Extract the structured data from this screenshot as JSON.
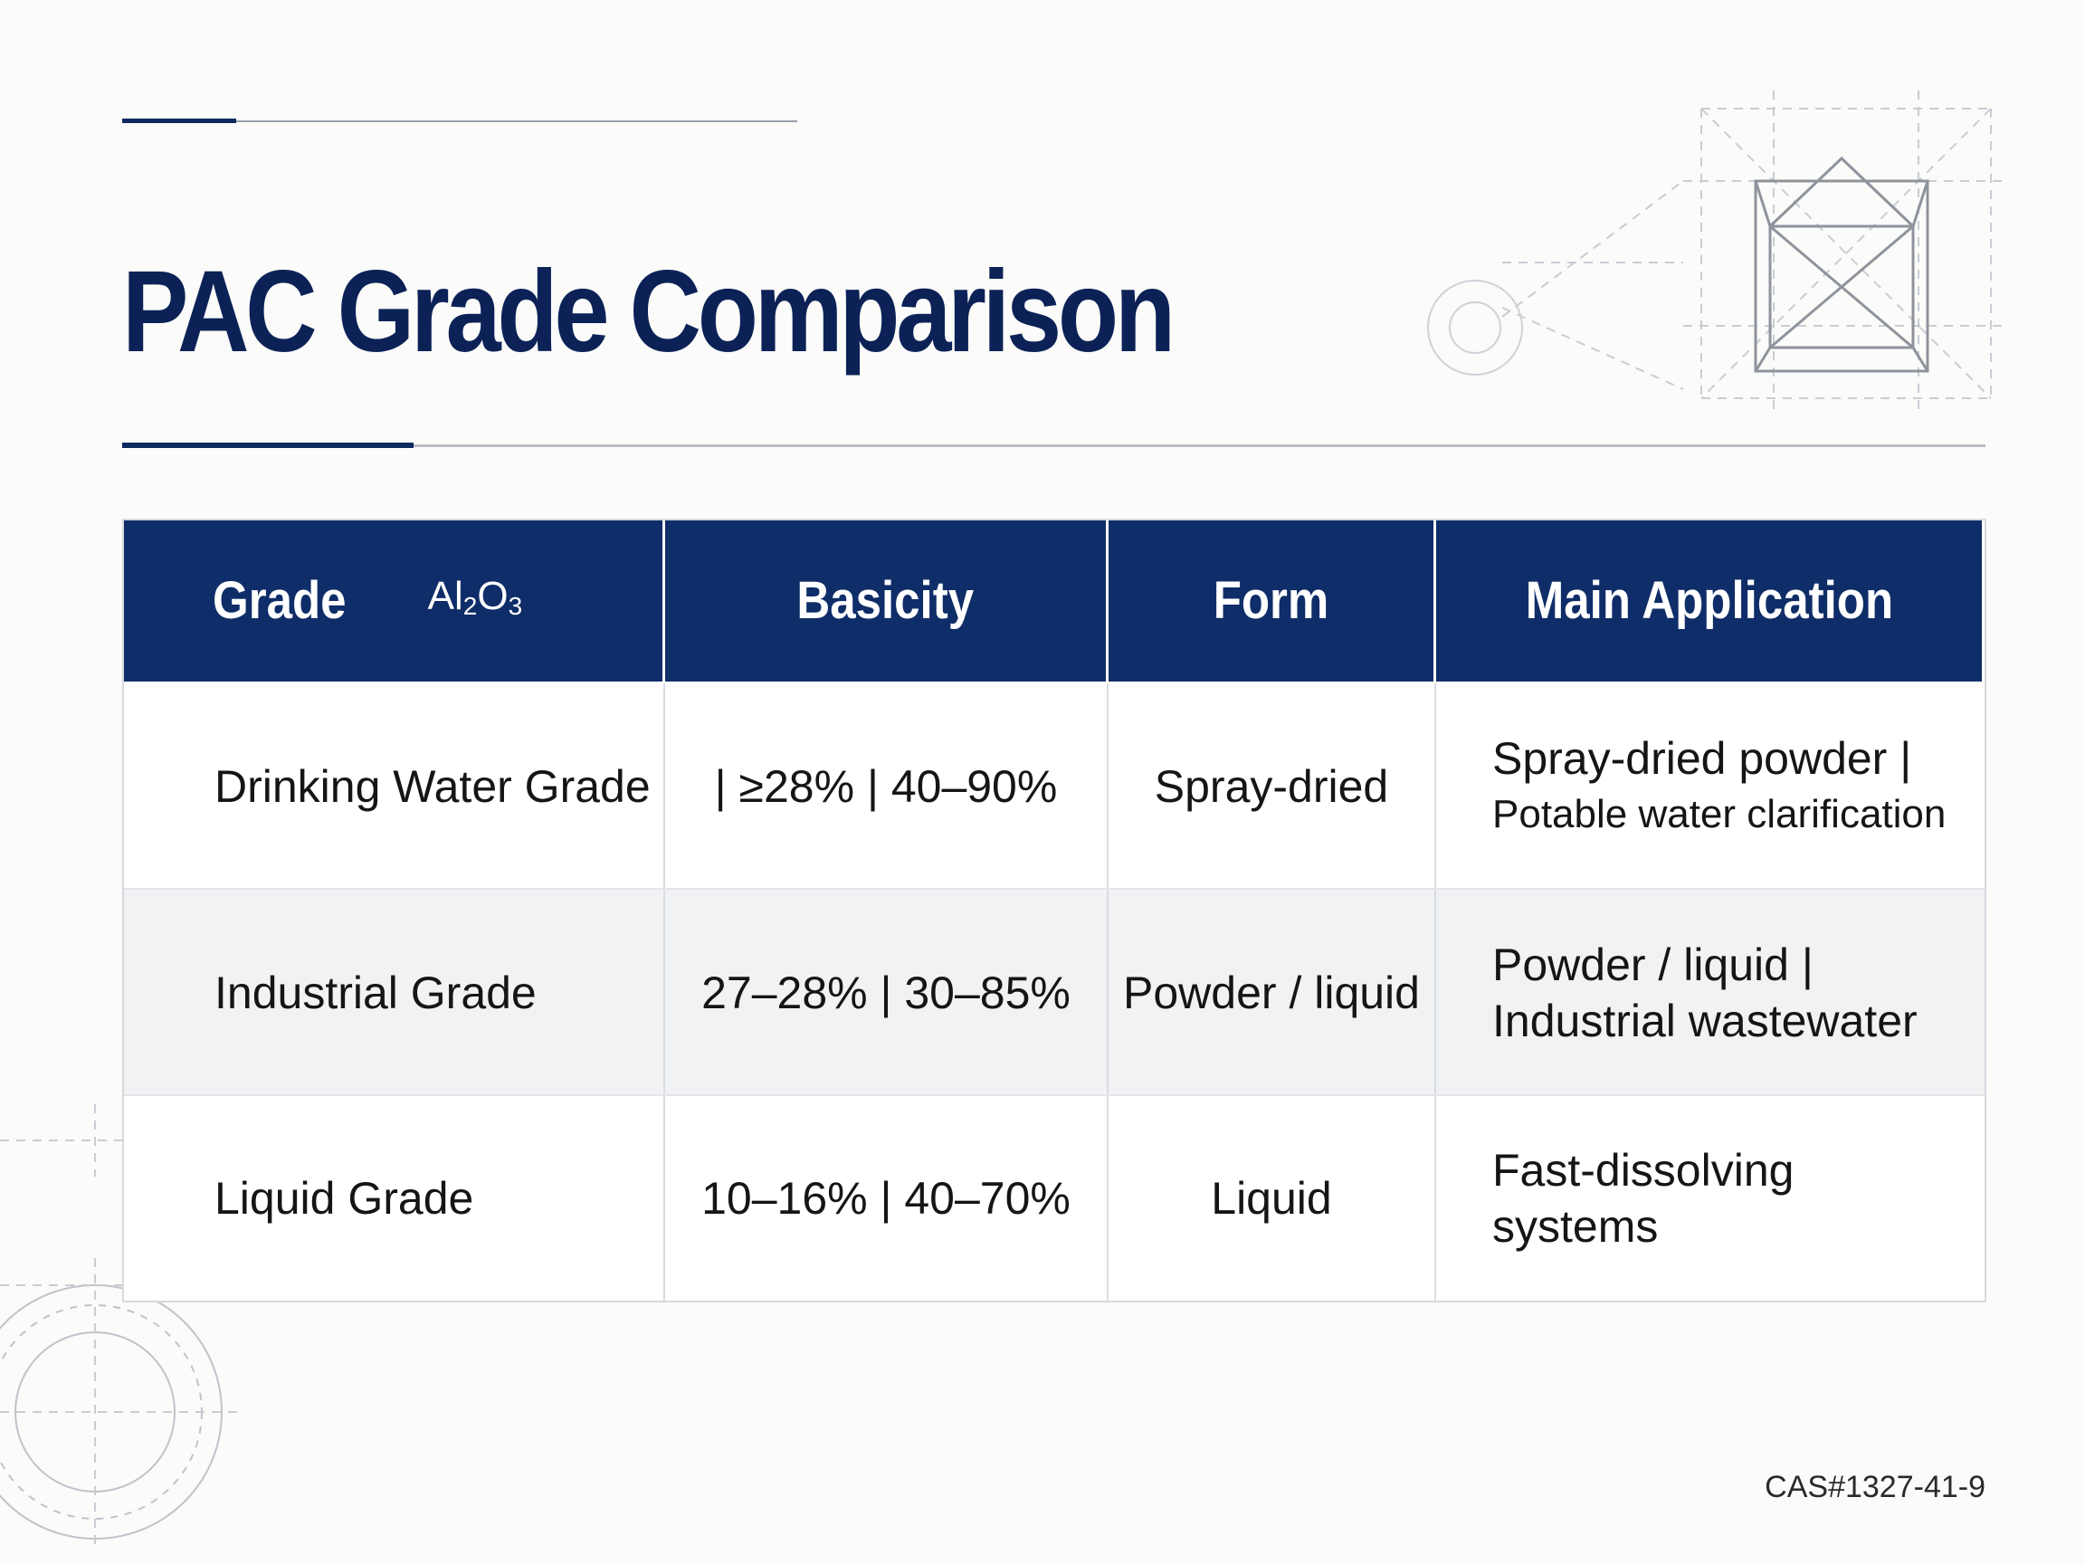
{
  "slide": {
    "title": "PAC Grade Comparison",
    "footer_code": "CAS#1327-41-9"
  },
  "table": {
    "headers": {
      "grade": "Grade",
      "al_prefix": "Al",
      "al_sub1": "2",
      "al_mid": "O",
      "al_sub2": "3",
      "basicity": "Basicity",
      "form": "Form",
      "application": "Main Application"
    },
    "rows": [
      {
        "grade": "Drinking Water Grade",
        "values": "| ≥28% | 40–90%",
        "form": "Spray-dried",
        "application_line1": "Spray-dried powder |",
        "application_line2": "Potable water clarification"
      },
      {
        "grade": "Industrial Grade",
        "values": "27–28% | 30–85%",
        "form": "Powder / liquid",
        "application_line1": "Powder / liquid |",
        "application_line2": "Industrial wastewater"
      },
      {
        "grade": "Liquid Grade",
        "values": "10–16% | 40–70%",
        "form": "Liquid",
        "application_line1": "Fast-dissolving",
        "application_line2": "systems"
      }
    ]
  },
  "colors": {
    "brand_navy": "#0f2d68",
    "title_navy": "#0c2257",
    "row_alt": "#f1f2f3"
  }
}
